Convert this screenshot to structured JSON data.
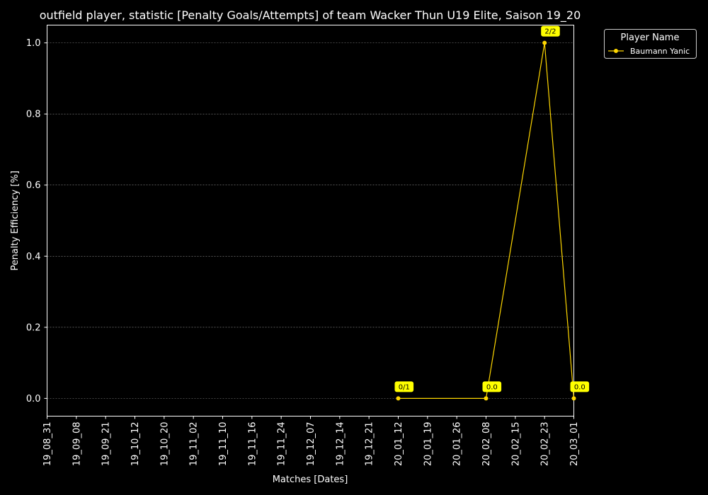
{
  "chart_data": {
    "type": "line",
    "title": "outfield player, statistic [Penalty Goals/Attempts] of team Wacker Thun U19 Elite, Saison 19_20",
    "xlabel": "Matches [Dates]",
    "ylabel": "Penalty Efficiency [%]",
    "categories": [
      "19_08_31",
      "19_09_08",
      "19_09_21",
      "19_10_12",
      "19_10_20",
      "19_11_02",
      "19_11_10",
      "19_11_16",
      "19_11_24",
      "19_12_07",
      "19_12_14",
      "19_12_21",
      "20_01_12",
      "20_01_19",
      "20_01_26",
      "20_02_08",
      "20_02_15",
      "20_02_23",
      "20_03_01"
    ],
    "ylim": [
      -0.05,
      1.05
    ],
    "yticks": [
      "0.0",
      "0.2",
      "0.4",
      "0.6",
      "0.8",
      "1.0"
    ],
    "grid": true,
    "legend": {
      "title": "Player Name",
      "position": "top-right outside"
    },
    "colors": {
      "background": "#000000",
      "series": "#ffd700",
      "annotation_bg": "#ffff00",
      "grid": "#888888"
    },
    "series": [
      {
        "name": "Baumann Yanic",
        "points": [
          {
            "x": "20_01_12",
            "y": 0.0,
            "label": "0/1"
          },
          {
            "x": "20_02_08",
            "y": 0.0,
            "label": "0.0"
          },
          {
            "x": "20_02_23",
            "y": 1.0,
            "label": "2/2"
          },
          {
            "x": "20_03_01",
            "y": 0.0,
            "label": "0.0"
          }
        ]
      }
    ]
  }
}
